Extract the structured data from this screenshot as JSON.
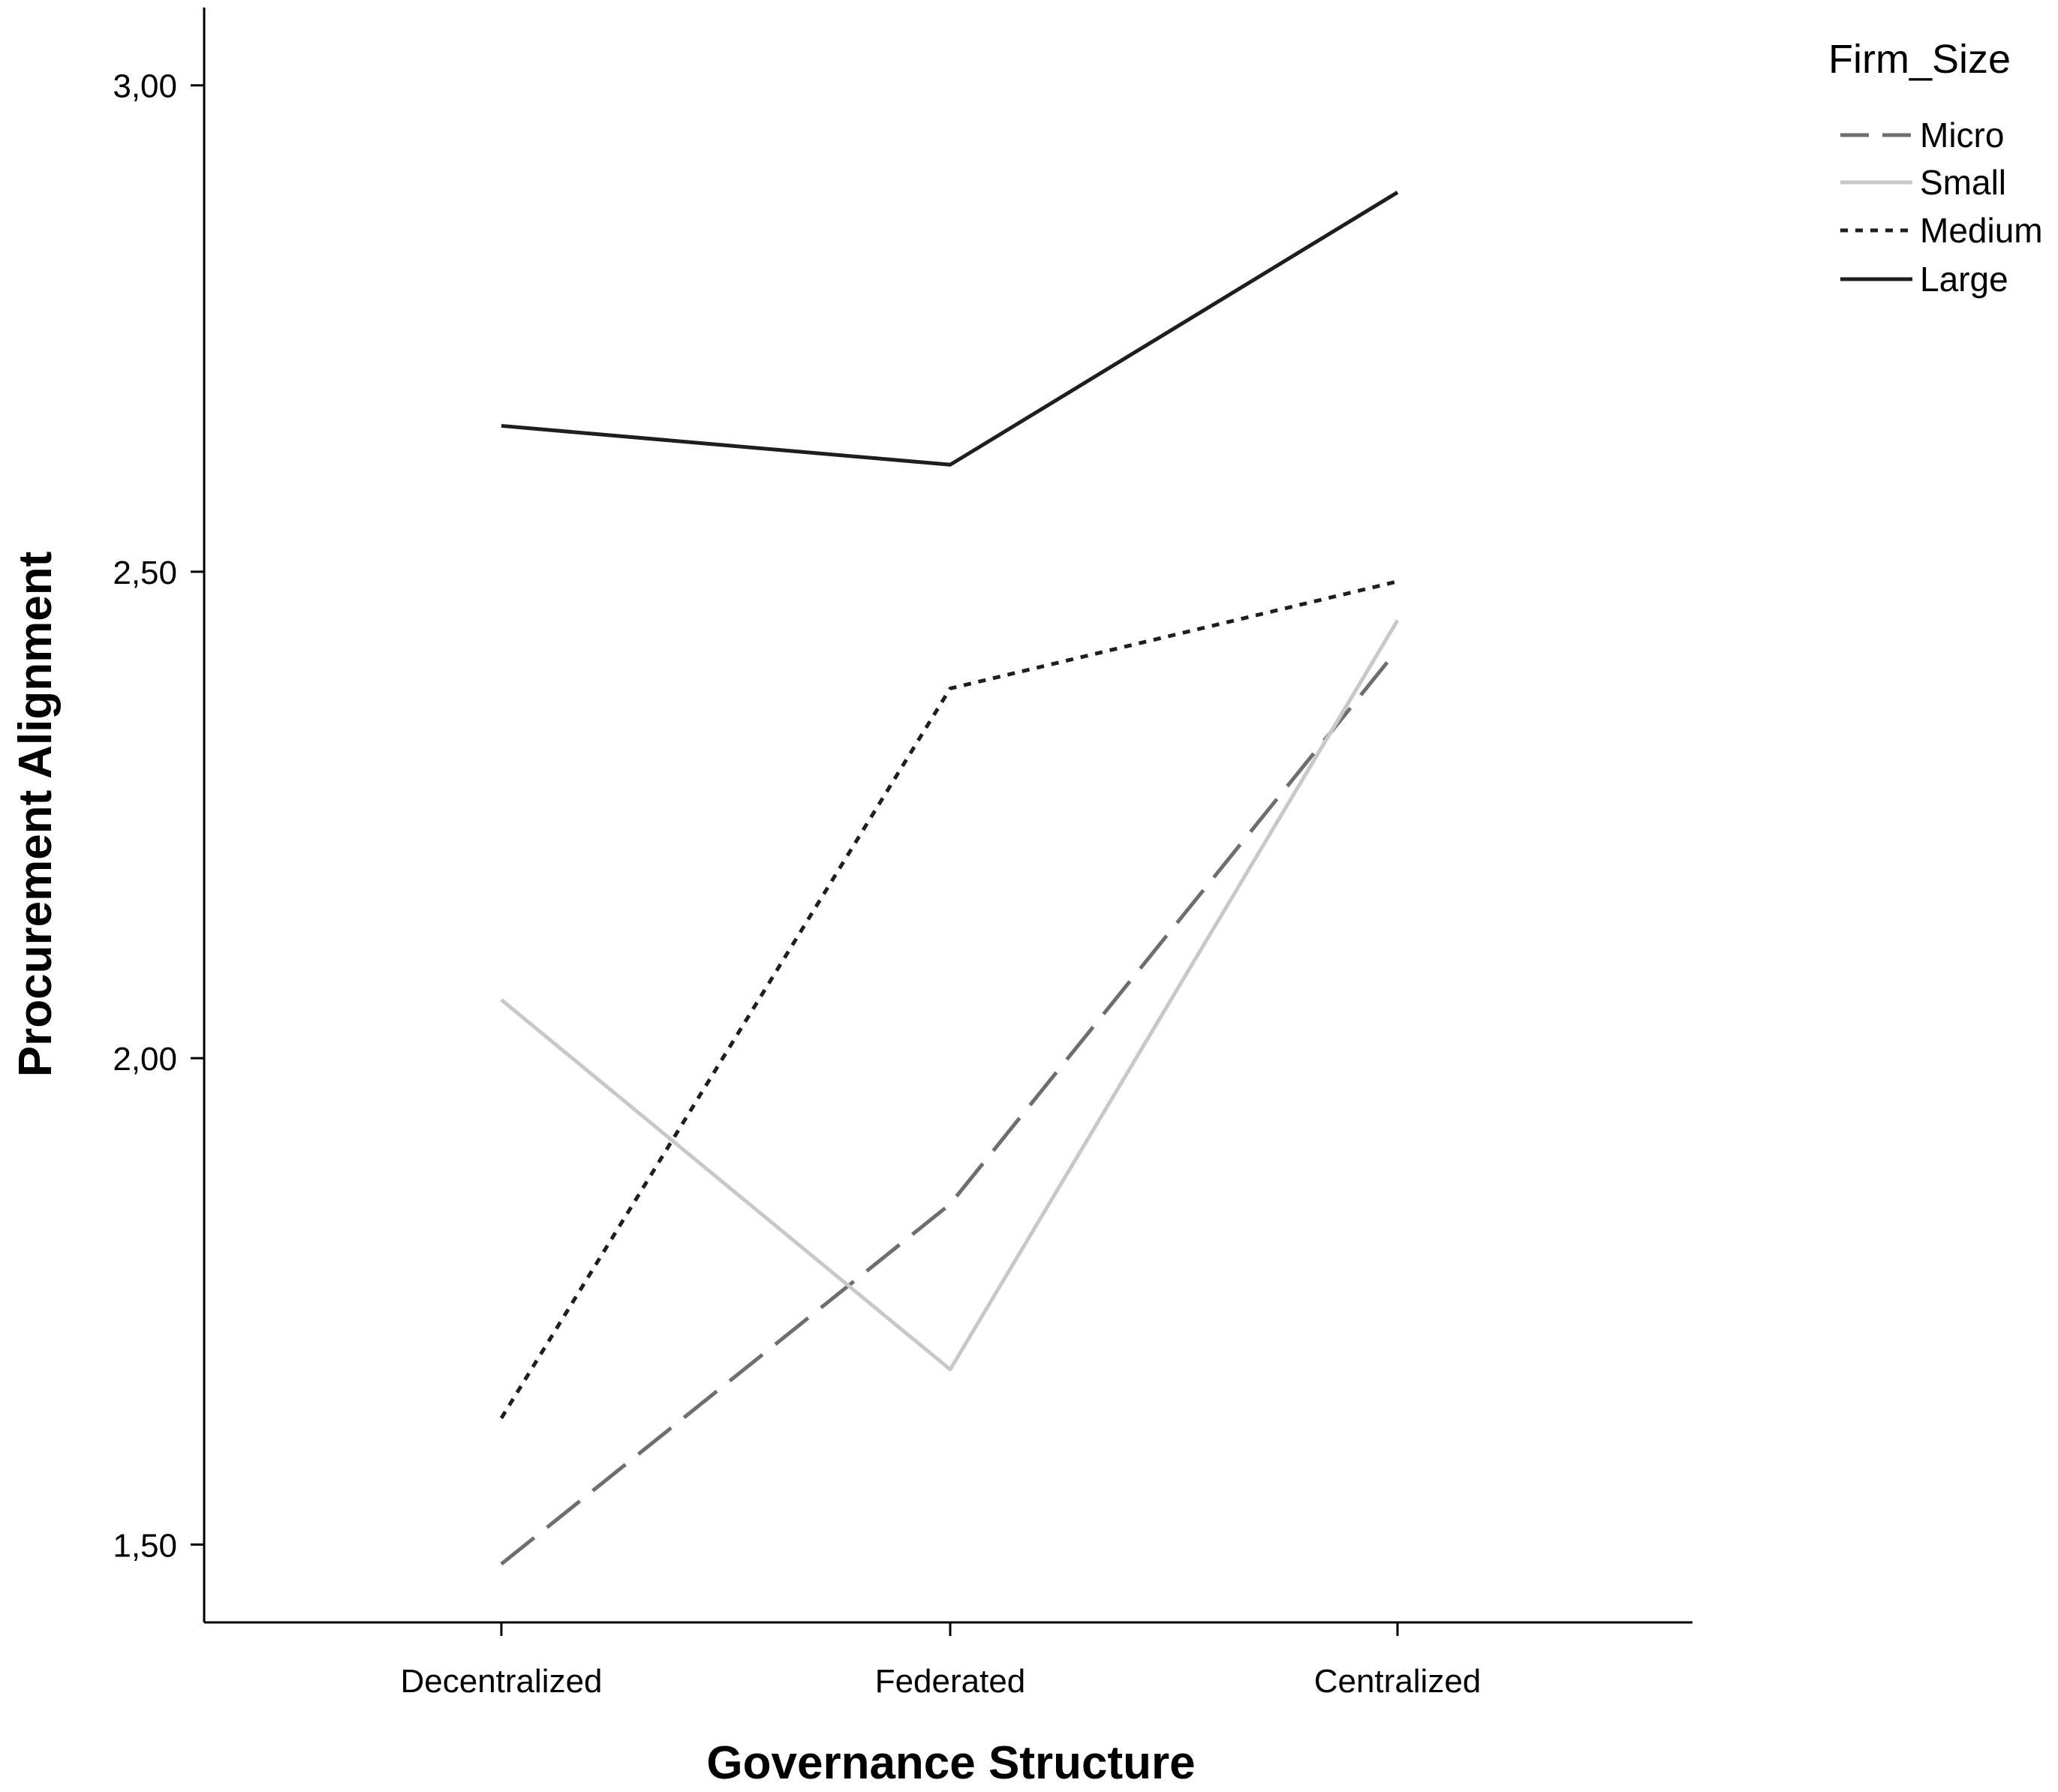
{
  "chart_data": {
    "type": "line",
    "title": "",
    "xlabel": "Governance Structure",
    "ylabel": "Procurement Alignment",
    "categories": [
      "Decentralized",
      "Federated",
      "Centralized"
    ],
    "ylim": [
      1.42,
      3.08
    ],
    "y_ticks": [
      1.5,
      2.0,
      2.5,
      3.0
    ],
    "y_tick_labels": [
      "1,50",
      "2,00",
      "2,50",
      "3,00"
    ],
    "grid": false,
    "legend": {
      "title": "Firm_Size",
      "placement": "top-right, outside plot"
    },
    "series": [
      {
        "name": "Micro",
        "values": [
          1.48,
          1.85,
          2.42
        ],
        "color": "#6e6e6e",
        "style": "long-dash"
      },
      {
        "name": "Small",
        "values": [
          2.06,
          1.68,
          2.45
        ],
        "color": "#c8c8c8",
        "style": "solid"
      },
      {
        "name": "Medium",
        "values": [
          1.63,
          2.38,
          2.49
        ],
        "color": "#1e1e1e",
        "style": "dotted"
      },
      {
        "name": "Large",
        "values": [
          2.65,
          2.61,
          2.89
        ],
        "color": "#1e1e1e",
        "style": "solid"
      }
    ]
  }
}
